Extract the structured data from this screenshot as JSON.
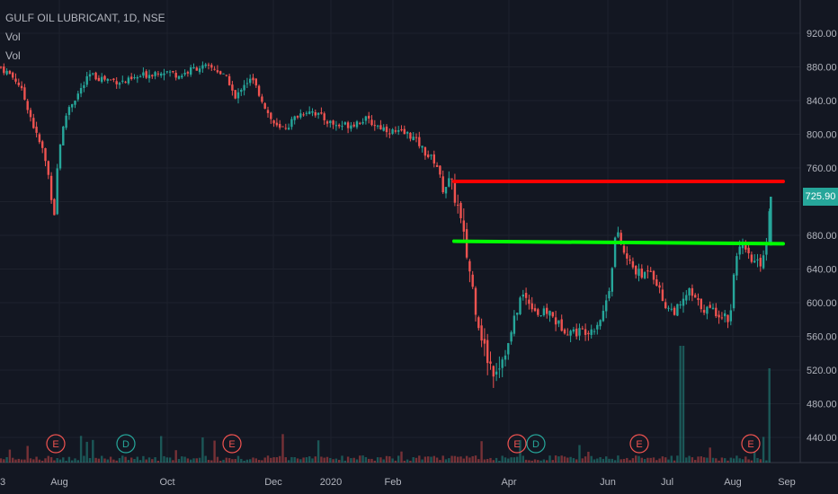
{
  "header": {
    "symbol_line": "GULF OIL LUBRICANT, 1D, NSE",
    "vol_label_1": "Vol",
    "vol_label_2": "Vol"
  },
  "last_price_label": "725.90",
  "colors": {
    "background": "#131722",
    "up": "#26a69a",
    "down": "#ef5350",
    "resistance_line": "#ff0000",
    "support_line": "#00ff00",
    "grid": "#1e222d",
    "axis_text": "#b2b5be"
  },
  "chart_data": {
    "type": "candlestick",
    "title": "GULF OIL LUBRICANT, 1D, NSE",
    "ylim": [
      420,
      950
    ],
    "y_ticks": [
      "920.00",
      "880.00",
      "840.00",
      "800.00",
      "760.00",
      "720.00",
      "680.00",
      "640.00",
      "600.00",
      "560.00",
      "520.00",
      "480.00",
      "440.00"
    ],
    "x_ticks": [
      "3",
      "Aug",
      "Oct",
      "Dec",
      "2020",
      "Feb",
      "Apr",
      "Jun",
      "Jul",
      "Aug",
      "Sep"
    ],
    "grid": true,
    "last_price": 725.9,
    "price_path": [
      [
        0,
        880
      ],
      [
        10,
        872
      ],
      [
        20,
        862
      ],
      [
        30,
        835
      ],
      [
        40,
        800
      ],
      [
        48,
        780
      ],
      [
        55,
        745
      ],
      [
        60,
        700
      ],
      [
        65,
        780
      ],
      [
        75,
        830
      ],
      [
        85,
        845
      ],
      [
        100,
        870
      ],
      [
        120,
        865
      ],
      [
        140,
        862
      ],
      [
        160,
        870
      ],
      [
        180,
        876
      ],
      [
        200,
        870
      ],
      [
        220,
        880
      ],
      [
        240,
        878
      ],
      [
        255,
        862
      ],
      [
        262,
        840
      ],
      [
        270,
        860
      ],
      [
        280,
        865
      ],
      [
        290,
        845
      ],
      [
        300,
        820
      ],
      [
        310,
        805
      ],
      [
        320,
        810
      ],
      [
        330,
        822
      ],
      [
        345,
        830
      ],
      [
        355,
        822
      ],
      [
        365,
        815
      ],
      [
        375,
        810
      ],
      [
        390,
        812
      ],
      [
        405,
        818
      ],
      [
        420,
        810
      ],
      [
        440,
        802
      ],
      [
        455,
        800
      ],
      [
        465,
        790
      ],
      [
        475,
        775
      ],
      [
        485,
        768
      ],
      [
        492,
        735
      ],
      [
        500,
        745
      ],
      [
        508,
        720
      ],
      [
        515,
        680
      ],
      [
        522,
        640
      ],
      [
        530,
        590
      ],
      [
        540,
        540
      ],
      [
        548,
        520
      ],
      [
        555,
        528
      ],
      [
        565,
        548
      ],
      [
        572,
        580
      ],
      [
        580,
        610
      ],
      [
        590,
        600
      ],
      [
        600,
        585
      ],
      [
        610,
        590
      ],
      [
        620,
        575
      ],
      [
        630,
        568
      ],
      [
        640,
        565
      ],
      [
        650,
        567
      ],
      [
        660,
        570
      ],
      [
        670,
        585
      ],
      [
        678,
        620
      ],
      [
        685,
        685
      ],
      [
        690,
        672
      ],
      [
        695,
        655
      ],
      [
        705,
        640
      ],
      [
        715,
        630
      ],
      [
        722,
        645
      ],
      [
        730,
        625
      ],
      [
        738,
        600
      ],
      [
        748,
        590
      ],
      [
        758,
        595
      ],
      [
        765,
        615
      ],
      [
        775,
        600
      ],
      [
        785,
        592
      ],
      [
        795,
        590
      ],
      [
        805,
        585
      ],
      [
        812,
        580
      ],
      [
        818,
        660
      ],
      [
        825,
        665
      ],
      [
        835,
        650
      ],
      [
        845,
        645
      ],
      [
        852,
        668
      ],
      [
        857,
        725.9
      ]
    ],
    "annotations": {
      "resistance": {
        "price_start": 744,
        "price_end": 744,
        "date_start": "Mar",
        "date_end": "Sep"
      },
      "support": {
        "price_start": 673,
        "price_end": 670,
        "date_start": "Mar",
        "date_end": "Sep"
      }
    },
    "event_markers": [
      {
        "label": "E",
        "kind": "earnings"
      },
      {
        "label": "D",
        "kind": "dividend"
      },
      {
        "label": "E",
        "kind": "earnings"
      },
      {
        "label": "E",
        "kind": "earnings"
      },
      {
        "label": "D",
        "kind": "dividend"
      },
      {
        "label": "E",
        "kind": "earnings"
      },
      {
        "label": "E",
        "kind": "earnings"
      }
    ]
  }
}
